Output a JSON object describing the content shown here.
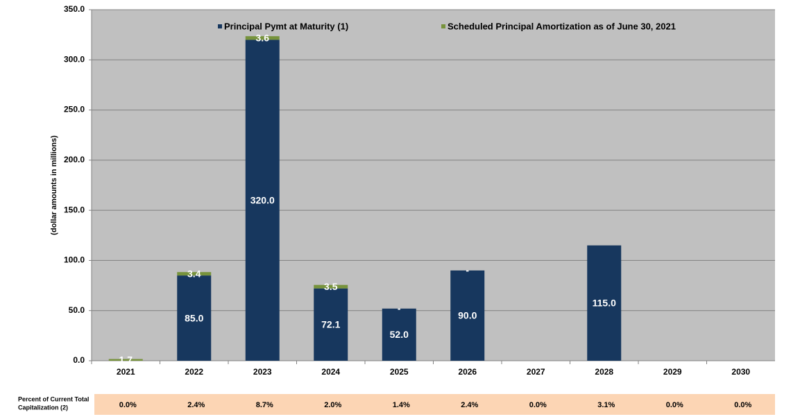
{
  "chart_data": {
    "type": "stacked_bar",
    "y_label": "(dollar amounts in millions)",
    "categories": [
      "2021",
      "2022",
      "2023",
      "2024",
      "2025",
      "2026",
      "2027",
      "2028",
      "2029",
      "2030"
    ],
    "series": [
      {
        "name": "Principal Pymt at Maturity (1)",
        "color": "#17375e",
        "values": [
          null,
          85.0,
          320.0,
          72.1,
          52.0,
          90.0,
          null,
          115.0,
          null,
          null
        ],
        "value_labels": [
          null,
          "85.0",
          "320.0",
          "72.1",
          "52.0",
          "90.0",
          null,
          "115.0",
          null,
          null
        ]
      },
      {
        "name": "Scheduled Principal Amortization as of June 30, 2021",
        "color": "#77933c",
        "values": [
          1.7,
          3.4,
          3.6,
          3.5,
          0,
          0,
          null,
          null,
          null,
          null
        ],
        "value_labels": [
          "1.7",
          "3.4",
          "3.6",
          "3.5",
          "-",
          "-",
          null,
          null,
          null,
          null
        ]
      }
    ],
    "ylim": [
      0,
      350
    ],
    "yticks": [
      {
        "value": 0,
        "label": "0.0"
      },
      {
        "value": 50,
        "label": "50.0"
      },
      {
        "value": 100,
        "label": "100.0"
      },
      {
        "value": 150,
        "label": "150.0"
      },
      {
        "value": 200,
        "label": "200.0"
      },
      {
        "value": 250,
        "label": "250.0"
      },
      {
        "value": 300,
        "label": "300.0"
      },
      {
        "value": 350,
        "label": "350.0"
      }
    ],
    "grid": true,
    "legend": "top",
    "table": {
      "label": [
        "Percent of Current Total",
        "Capitalization  (2)"
      ],
      "cells": [
        "0.0%",
        "2.4%",
        "8.7%",
        "2.0%",
        "1.4%",
        "2.4%",
        "0.0%",
        "3.1%",
        "0.0%",
        "0.0%"
      ]
    }
  }
}
